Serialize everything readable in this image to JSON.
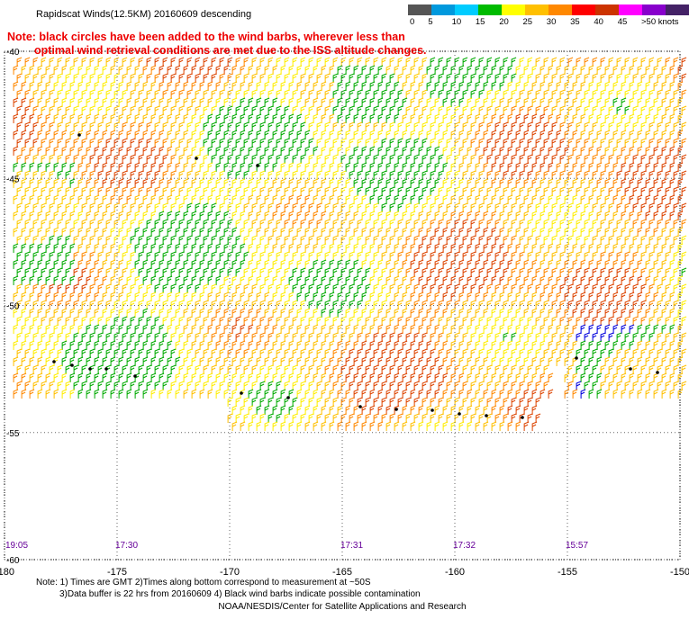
{
  "title": "Rapidscat Winds(12.5KM) 20160609 descending",
  "note": {
    "line1": "Note: black circles have been added to the wind barbs, wherever less than",
    "line2": "optimal wind retrieval conditions are met due to the ISS altitude changes."
  },
  "legend": {
    "colors": [
      "#555555",
      "#0099dd",
      "#00ccff",
      "#00bb00",
      "#ffff00",
      "#ffc000",
      "#ff8800",
      "#ff0000",
      "#cc3300",
      "#ff00ff",
      "#8800cc",
      "#442266"
    ],
    "labels": [
      "0",
      "5",
      "10",
      "15",
      "20",
      "25",
      "30",
      "35",
      "40",
      "45",
      ">50 knots"
    ]
  },
  "map": {
    "lon_range": [
      -180,
      -150
    ],
    "lat_range": [
      -40,
      -60
    ],
    "lon_ticks": [
      "-180",
      "-175",
      "-170",
      "-165",
      "-160",
      "-155",
      "-150"
    ],
    "lat_ticks": [
      "-40",
      "-45",
      "-50",
      "-55",
      "-60"
    ],
    "grid_style": "dotted",
    "times": [
      {
        "label": "19:05",
        "lon": -180
      },
      {
        "label": "17:30",
        "lon": -175
      },
      {
        "label": "17:31",
        "lon": -165
      },
      {
        "label": "17:32",
        "lon": -160
      },
      {
        "label": "15:57",
        "lon": -155
      }
    ]
  },
  "footer": {
    "line1": "Note: 1) Times are GMT 2)Times along bottom correspond to measurement at ~50S",
    "line2": "3)Data buffer is 22 hrs from 20160609 4) Black wind barbs indicate possible contamination",
    "credit": "NOAA/NESDIS/Center for Satellite Applications and Research"
  }
}
